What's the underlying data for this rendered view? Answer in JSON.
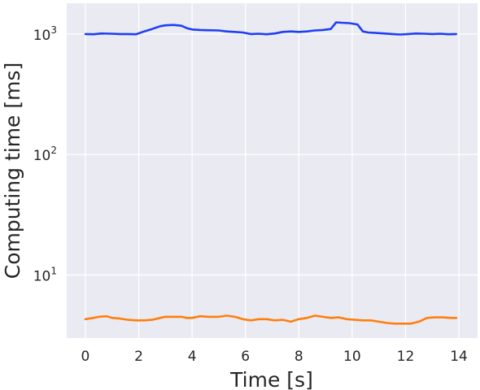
{
  "chart_data": {
    "type": "line",
    "title": "",
    "xlabel": "Time [s]",
    "ylabel": "Computing time [ms]",
    "xlim": [
      -0.7,
      14.7
    ],
    "ylim": [
      3,
      1800
    ],
    "yscale": "log",
    "xticks": [
      0,
      2,
      4,
      6,
      8,
      10,
      12,
      14
    ],
    "yticks": [
      {
        "value": 10,
        "base": "10",
        "exp": "1"
      },
      {
        "value": 100,
        "base": "10",
        "exp": "2"
      },
      {
        "value": 1000,
        "base": "10",
        "exp": "3"
      }
    ],
    "grid": true,
    "legend": "none",
    "colors": {
      "background": "#eaeaf2",
      "grid": "#ffffff",
      "series1": "#1f3ff5",
      "series2": "#ff7f0e"
    },
    "series": [
      {
        "x": [
          0,
          0.3,
          0.6,
          1.0,
          1.3,
          1.6,
          1.9,
          2.2,
          2.5,
          2.8,
          3.0,
          3.3,
          3.6,
          3.8,
          4.0,
          4.3,
          4.6,
          5.0,
          5.3,
          5.6,
          5.9,
          6.2,
          6.5,
          6.8,
          7.1,
          7.4,
          7.7,
          8.0,
          8.3,
          8.6,
          8.9,
          9.2,
          9.4,
          9.6,
          9.9,
          10.2,
          10.4,
          10.6,
          10.9,
          11.2,
          11.5,
          11.8,
          12.1,
          12.4,
          12.7,
          13.0,
          13.3,
          13.6,
          13.9
        ],
        "y": [
          1000,
          995,
          1010,
          1005,
          1000,
          1000,
          995,
          1050,
          1100,
          1160,
          1180,
          1190,
          1170,
          1120,
          1090,
          1080,
          1075,
          1070,
          1050,
          1040,
          1030,
          1000,
          1005,
          995,
          1010,
          1040,
          1050,
          1040,
          1050,
          1070,
          1080,
          1100,
          1250,
          1240,
          1230,
          1200,
          1050,
          1030,
          1020,
          1010,
          1000,
          990,
          1000,
          1010,
          1005,
          1000,
          1005,
          995,
          1000
        ],
        "color": "#1f3ff5"
      },
      {
        "x": [
          0,
          0.3,
          0.5,
          0.8,
          1.0,
          1.3,
          1.6,
          1.9,
          2.2,
          2.5,
          2.8,
          3.0,
          3.3,
          3.6,
          3.8,
          4.0,
          4.3,
          4.6,
          5.0,
          5.3,
          5.6,
          5.9,
          6.2,
          6.5,
          6.8,
          7.1,
          7.4,
          7.7,
          8.0,
          8.3,
          8.6,
          8.9,
          9.2,
          9.5,
          9.8,
          10.1,
          10.4,
          10.7,
          11.0,
          11.3,
          11.6,
          11.9,
          12.2,
          12.5,
          12.8,
          13.1,
          13.4,
          13.7,
          13.9
        ],
        "y": [
          4.3,
          4.4,
          4.5,
          4.55,
          4.4,
          4.35,
          4.25,
          4.2,
          4.2,
          4.25,
          4.4,
          4.5,
          4.5,
          4.5,
          4.4,
          4.4,
          4.55,
          4.5,
          4.5,
          4.6,
          4.5,
          4.3,
          4.2,
          4.3,
          4.3,
          4.2,
          4.25,
          4.1,
          4.3,
          4.4,
          4.6,
          4.5,
          4.4,
          4.45,
          4.3,
          4.25,
          4.2,
          4.2,
          4.1,
          4.0,
          3.95,
          3.95,
          3.95,
          4.1,
          4.4,
          4.45,
          4.45,
          4.4,
          4.4
        ],
        "color": "#ff7f0e"
      }
    ]
  }
}
